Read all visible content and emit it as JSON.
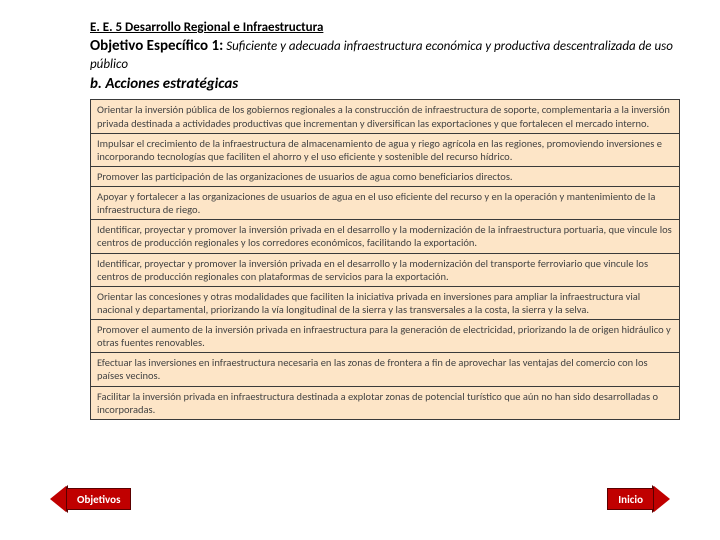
{
  "heading": "E. E. 5 Desarrollo Regional e Infraestructura",
  "objective": {
    "label": "Objetivo Específico 1:",
    "text": " Suficiente y adecuada infraestructura económica y productiva descentralizada de uso público"
  },
  "sub_heading": "b. Acciones estratégicas",
  "actions": [
    "Orientar la inversión pública de los gobiernos regionales a la construcción de infraestructura de soporte, complementaria a la inversión privada destinada a actividades productivas que incrementan y diversifican las exportaciones y que fortalecen el mercado interno.",
    "Impulsar el crecimiento de la infraestructura de almacenamiento de agua y riego agrícola en las regiones, promoviendo inversiones e incorporando tecnologías que faciliten el ahorro y el uso eficiente y sostenible del recurso hídrico.",
    "Promover las participación de las organizaciones de usuarios de agua como beneficiarios directos.",
    "Apoyar y fortalecer a las organizaciones de usuarios de agua en el uso eficiente del recurso y en la operación y mantenimiento de la infraestructura de riego.",
    "Identificar, proyectar y promover la inversión privada en el desarrollo y la modernización de la infraestructura portuaria, que vincule los centros de producción regionales y los corredores económicos, facilitando la exportación.",
    "Identificar, proyectar y promover la inversión privada en el desarrollo y la modernización del transporte ferroviario que vincule los centros de producción regionales con plataformas de servicios para la exportación.",
    "Orientar las concesiones y otras modalidades que faciliten la iniciativa privada en inversiones para ampliar la infraestructura vial nacional y departamental, priorizando la vía longitudinal de la sierra y las transversales a la costa, la sierra y la selva.",
    "Promover el aumento de la inversión privada en infraestructura para la generación de electricidad, priorizando la de origen hidráulico y otras fuentes renovables.",
    "Efectuar las inversiones en infraestructura necesaria en las zonas de frontera a fin de aprovechar las ventajas del comercio con los países vecinos.",
    "Facilitar la inversión privada en infraestructura destinada a explotar zonas de potencial turístico que aún no han sido desarrolladas o incorporadas."
  ],
  "nav": {
    "back": "Objetivos",
    "home": "Inicio"
  },
  "colors": {
    "table_bg": "#fde5c7",
    "arrow_fill": "#c00000",
    "arrow_border": "#5a0000"
  }
}
